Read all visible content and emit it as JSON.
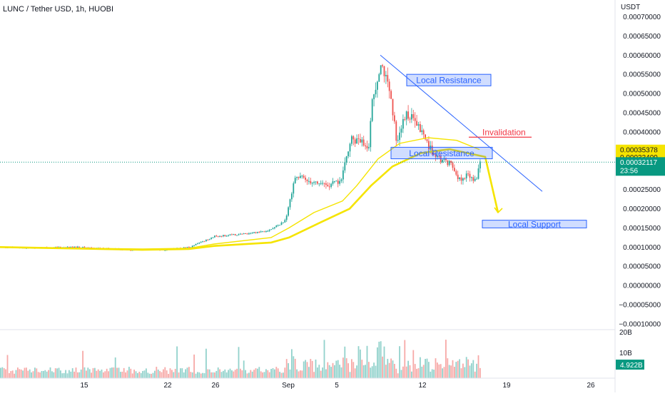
{
  "header": {
    "title": "LUNC / Tether USD, 1h, HUOBI",
    "unit": "USDT"
  },
  "price_axis": {
    "ticks": [
      "0.00070000",
      "0.00065000",
      "0.00060000",
      "0.00055000",
      "0.00050000",
      "0.00045000",
      "0.00040000",
      "0.00025000",
      "0.00020000",
      "0.00015000",
      "0.00010000",
      "0.00005000",
      "0.00000000",
      "−0.00005000",
      "−0.00010000"
    ],
    "tick_values": [
      0.0007,
      0.00065,
      0.0006,
      0.00055,
      0.0005,
      0.00045,
      0.0004,
      0.00025,
      0.0002,
      0.00015,
      0.0001,
      5e-05,
      0,
      -5e-05,
      -0.0001
    ],
    "ylim": [
      -0.000115,
      0.000725
    ]
  },
  "price_badges": [
    {
      "text": "0.00035378",
      "value": 0.00035378,
      "color": "#f5e400"
    },
    {
      "text": "0.00033409",
      "value": 0.00033409,
      "color": "#f5e400"
    }
  ],
  "last_price": {
    "value_text": "0.00032117",
    "countdown": "23:56",
    "value": 0.00032117,
    "color": "#089981"
  },
  "volume_axis": {
    "ticks": [
      "20B",
      "10B"
    ],
    "last_text": "4.922B",
    "last_color": "#089981"
  },
  "time_axis": {
    "labels": [
      "15",
      "22",
      "26",
      "Sep",
      "5",
      "12",
      "19",
      "26"
    ]
  },
  "annotations": {
    "resistance_top": "Local Resistance",
    "resistance_mid": "Local Resistance",
    "support": "Local Support",
    "invalidation": "Invalidation"
  },
  "colors": {
    "up": "#26a69a",
    "down": "#ef5350",
    "ma": "#f5e400",
    "trend": "#2962ff",
    "zone": "#2962ff"
  },
  "chart_data": {
    "type": "candlestick",
    "title": "LUNC / Tether USD, 1h, HUOBI",
    "ylabel": "USDT",
    "price_keypoints": [
      [
        0,
        0.0001
      ],
      [
        40,
        9.8e-05
      ],
      [
        110,
        0.0001
      ],
      [
        180,
        9.3e-05
      ],
      [
        230,
        9.3e-05
      ],
      [
        265,
        0.0001
      ],
      [
        300,
        0.000128
      ],
      [
        345,
        0.000135
      ],
      [
        378,
        0.000145
      ],
      [
        400,
        0.00017
      ],
      [
        412,
        0.000285
      ],
      [
        440,
        0.00027
      ],
      [
        460,
        0.00026
      ],
      [
        478,
        0.000275
      ],
      [
        490,
        0.00038
      ],
      [
        505,
        0.000375
      ],
      [
        515,
        0.000345
      ],
      [
        520,
        0.00047
      ],
      [
        533,
        0.00059
      ],
      [
        545,
        0.0005
      ],
      [
        555,
        0.00038
      ],
      [
        570,
        0.00045
      ],
      [
        590,
        0.0004
      ],
      [
        610,
        0.00033
      ],
      [
        630,
        0.00032
      ],
      [
        645,
        0.00027
      ],
      [
        655,
        0.00029
      ],
      [
        665,
        0.00027
      ],
      [
        672,
        0.000321
      ]
    ],
    "ma_fast": [
      [
        0,
        0.0001
      ],
      [
        200,
        9.5e-05
      ],
      [
        265,
        9.7e-05
      ],
      [
        300,
        0.000108
      ],
      [
        380,
        0.000125
      ],
      [
        405,
        0.00015
      ],
      [
        440,
        0.00019
      ],
      [
        480,
        0.00022
      ],
      [
        500,
        0.00026
      ],
      [
        530,
        0.00033
      ],
      [
        560,
        0.00037
      ],
      [
        600,
        0.000385
      ],
      [
        640,
        0.000378
      ],
      [
        672,
        0.000354
      ]
    ],
    "ma_slow": [
      [
        0,
        0.0001
      ],
      [
        200,
        9.3e-05
      ],
      [
        265,
        9.5e-05
      ],
      [
        300,
        0.000103
      ],
      [
        380,
        0.000112
      ],
      [
        405,
        0.000125
      ],
      [
        450,
        0.000165
      ],
      [
        490,
        0.0002
      ],
      [
        520,
        0.00026
      ],
      [
        550,
        0.00031
      ],
      [
        590,
        0.000345
      ],
      [
        630,
        0.000355
      ],
      [
        680,
        0.000335
      ],
      [
        698,
        0.00019
      ]
    ],
    "trendline": [
      [
        533,
        0.0006
      ],
      [
        760,
        0.000245
      ]
    ],
    "zones": [
      {
        "label_key": "resistance_top",
        "x1": 570,
        "x2": 688,
        "y1": 0.00052,
        "y2": 0.00055
      },
      {
        "label_key": "resistance_mid",
        "x1": 548,
        "x2": 690,
        "y1": 0.00033,
        "y2": 0.00036
      },
      {
        "label_key": "support",
        "x1": 676,
        "x2": 822,
        "y1": 0.00015,
        "y2": 0.00017
      }
    ]
  }
}
